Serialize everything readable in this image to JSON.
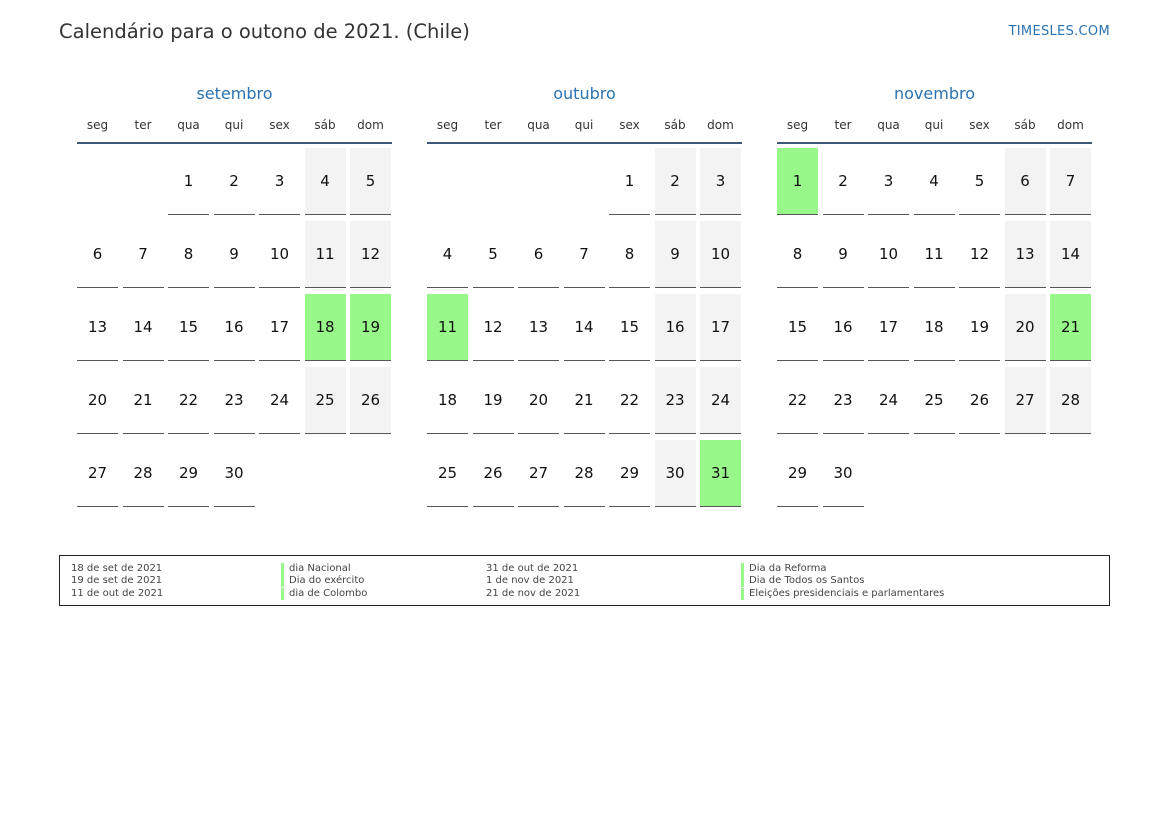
{
  "header": {
    "title": "Calendário para o outono de 2021. (Chile)",
    "site": "TIMESLES.COM"
  },
  "weekdays": [
    "seg",
    "ter",
    "qua",
    "qui",
    "sex",
    "sáb",
    "dom"
  ],
  "months": [
    {
      "name": "setembro",
      "start_weekday": 2,
      "days": 30,
      "holidays": [
        18,
        19
      ]
    },
    {
      "name": "outubro",
      "start_weekday": 4,
      "days": 31,
      "holidays": [
        11,
        31
      ]
    },
    {
      "name": "novembro",
      "start_weekday": 0,
      "days": 30,
      "holidays": [
        1,
        21
      ]
    }
  ],
  "legend": {
    "left": [
      {
        "date": "18 de set de 2021",
        "name": "dia Nacional"
      },
      {
        "date": "19 de set de 2021",
        "name": "Dia do exército"
      },
      {
        "date": "11 de out de 2021",
        "name": "dia de Colombo"
      }
    ],
    "right": [
      {
        "date": "31 de out de 2021",
        "name": "Dia da Reforma"
      },
      {
        "date": "1 de nov de 2021",
        "name": "Dia de Todos os Santos"
      },
      {
        "date": "21 de nov de 2021",
        "name": "Eleições presidenciais e parlamentares"
      }
    ]
  },
  "colors": {
    "holiday": "#98f98a",
    "weekend": "#f3f3f3",
    "accent": "#2a72b0"
  }
}
